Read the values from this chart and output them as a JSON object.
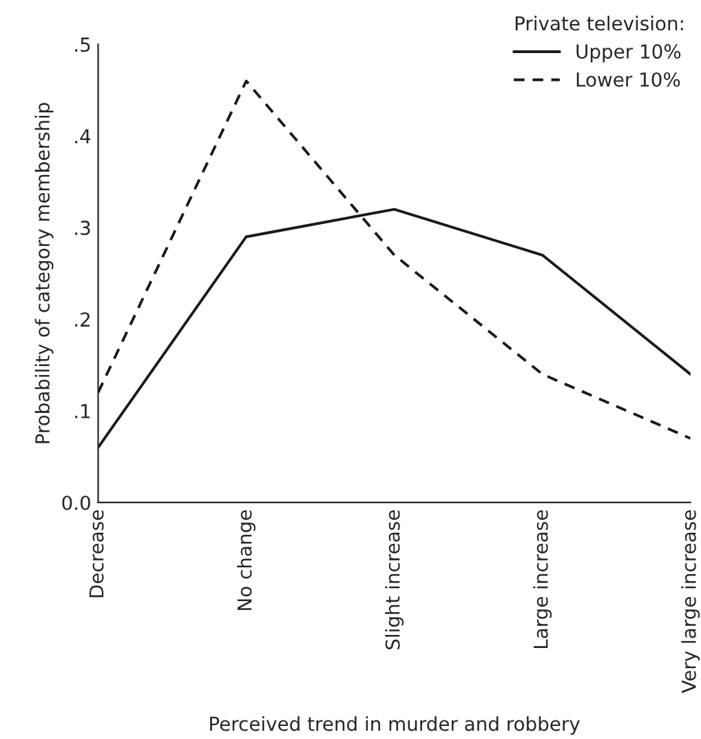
{
  "chart_data": {
    "type": "line",
    "xlabel": "Perceived trend in murder and robbery",
    "ylabel": "Probability of category membership",
    "legend_title": "Private television:",
    "legend": "top right",
    "grid": false,
    "marker": "none",
    "categories": [
      "Decrease",
      "No change",
      "Slight increase",
      "Large increase",
      "Very large increase"
    ],
    "ylim": [
      0,
      0.5
    ],
    "yticks": [
      {
        "value": 0,
        "label": "0.0"
      },
      {
        "value": 0.1,
        "label": ".1"
      },
      {
        "value": 0.2,
        "label": ".2"
      },
      {
        "value": 0.3,
        "label": ".3"
      },
      {
        "value": 0.4,
        "label": ".4"
      },
      {
        "value": 0.5,
        "label": ".5"
      }
    ],
    "series": [
      {
        "name": "Upper 10%",
        "color": "#1a1a1a",
        "line_style": "solid",
        "values": [
          0.06,
          0.29,
          0.32,
          0.27,
          0.14
        ]
      },
      {
        "name": "Lower 10%",
        "color": "#1a1a1a",
        "line_style": "dashed",
        "values": [
          0.12,
          0.46,
          0.27,
          0.14,
          0.07
        ]
      }
    ]
  }
}
